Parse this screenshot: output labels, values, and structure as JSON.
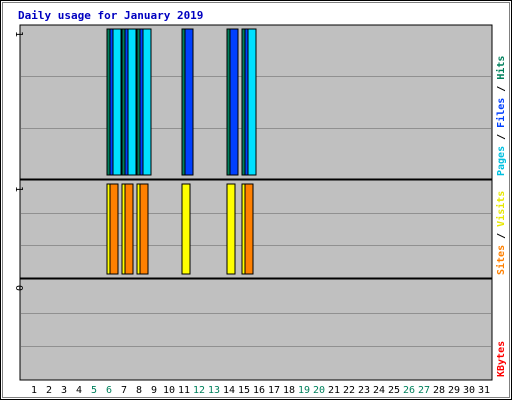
{
  "chart_data": {
    "type": "bar",
    "title": "Daily usage for January 2019",
    "days": [
      "1",
      "2",
      "3",
      "4",
      "5",
      "6",
      "7",
      "8",
      "9",
      "10",
      "11",
      "12",
      "13",
      "14",
      "15",
      "16",
      "17",
      "18",
      "19",
      "20",
      "21",
      "22",
      "23",
      "24",
      "25",
      "26",
      "27",
      "28",
      "29",
      "30",
      "31"
    ],
    "weekend_days": [
      "5",
      "6",
      "12",
      "13",
      "19",
      "20",
      "26",
      "27"
    ],
    "panels": [
      {
        "name": "top",
        "ymax_label": "1",
        "ymax": 1,
        "series": [
          {
            "key": "hits",
            "color": "#00805C",
            "values": [
              0,
              0,
              0,
              0,
              0,
              1,
              1,
              1,
              0,
              0,
              1,
              0,
              0,
              1,
              1,
              0,
              0,
              0,
              0,
              0,
              0,
              0,
              0,
              0,
              0,
              0,
              0,
              0,
              0,
              0,
              0
            ]
          },
          {
            "key": "files",
            "color": "#0040FF",
            "values": [
              0,
              0,
              0,
              0,
              0,
              1,
              1,
              1,
              0,
              0,
              1,
              0,
              0,
              1,
              1,
              0,
              0,
              0,
              0,
              0,
              0,
              0,
              0,
              0,
              0,
              0,
              0,
              0,
              0,
              0,
              0
            ]
          },
          {
            "key": "pages",
            "color": "#00E0FF",
            "values": [
              0,
              0,
              0,
              0,
              0,
              1,
              1,
              1,
              0,
              0,
              0,
              0,
              0,
              0,
              1,
              0,
              0,
              0,
              0,
              0,
              0,
              0,
              0,
              0,
              0,
              0,
              0,
              0,
              0,
              0,
              0
            ]
          }
        ],
        "legend": [
          {
            "text": "Pages",
            "color": "#00C0E0"
          },
          {
            "text": " / ",
            "color": "#000000"
          },
          {
            "text": "Files",
            "color": "#0040FF"
          },
          {
            "text": " / ",
            "color": "#000000"
          },
          {
            "text": "Hits",
            "color": "#00805C"
          }
        ]
      },
      {
        "name": "middle",
        "ymax_label": "1",
        "ymax": 1,
        "series": [
          {
            "key": "visits",
            "color": "#FFFF00",
            "values": [
              0,
              0,
              0,
              0,
              0,
              1,
              1,
              1,
              0,
              0,
              1,
              0,
              0,
              1,
              1,
              0,
              0,
              0,
              0,
              0,
              0,
              0,
              0,
              0,
              0,
              0,
              0,
              0,
              0,
              0,
              0
            ]
          },
          {
            "key": "sites",
            "color": "#FF8000",
            "values": [
              0,
              0,
              0,
              0,
              0,
              1,
              1,
              1,
              0,
              0,
              0,
              0,
              0,
              0,
              1,
              0,
              0,
              0,
              0,
              0,
              0,
              0,
              0,
              0,
              0,
              0,
              0,
              0,
              0,
              0,
              0
            ]
          }
        ],
        "legend": [
          {
            "text": "Sites",
            "color": "#FF8000"
          },
          {
            "text": " / ",
            "color": "#000000"
          },
          {
            "text": "Visits",
            "color": "#E8E800"
          }
        ]
      },
      {
        "name": "bottom",
        "ymax_label": "0",
        "ymax": 0,
        "series": [
          {
            "key": "kbytes",
            "color": "#FF0000",
            "values": [
              0,
              0,
              0,
              0,
              0,
              0,
              0,
              0,
              0,
              0,
              0,
              0,
              0,
              0,
              0,
              0,
              0,
              0,
              0,
              0,
              0,
              0,
              0,
              0,
              0,
              0,
              0,
              0,
              0,
              0,
              0
            ]
          }
        ],
        "legend": [
          {
            "text": "KBytes",
            "color": "#FF0000"
          }
        ]
      }
    ],
    "colors": {
      "title": "#0000C0",
      "plot_bg": "#C0C0C0",
      "outer_bg": "#ffffff",
      "gridline": "#909090",
      "weekday_tick": "#000000",
      "weekend_tick": "#00805C"
    }
  }
}
